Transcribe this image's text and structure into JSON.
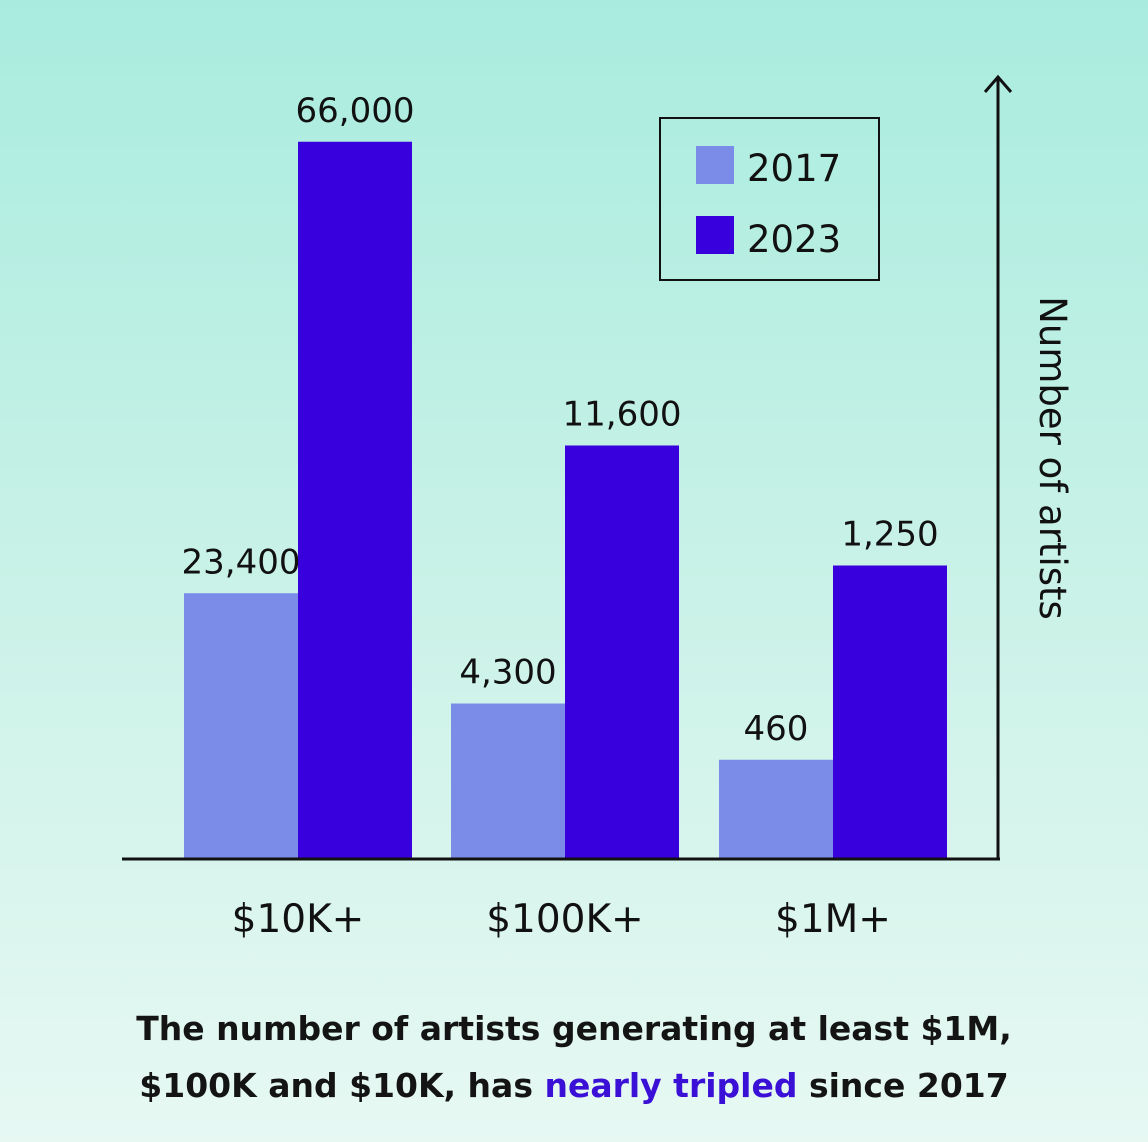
{
  "chart_data": {
    "type": "bar",
    "categories": [
      "$10K+",
      "$100K+",
      "$1M+"
    ],
    "series": [
      {
        "name": "2017",
        "values": [
          23400,
          4300,
          460
        ],
        "labels": [
          "23,400",
          "4,300",
          "460"
        ],
        "color": "#7a8ce8"
      },
      {
        "name": "2023",
        "values": [
          66000,
          11600,
          1250
        ],
        "labels": [
          "66,000",
          "11,600",
          "1,250"
        ],
        "color": "#3700dd"
      }
    ],
    "ylabel": "Number of artists",
    "xlabel": "",
    "y_scale": "non-linear (bars not drawn to a linear scale)",
    "bar_fraction": [
      [
        0.353,
        0.955
      ],
      [
        0.206,
        0.55
      ],
      [
        0.131,
        0.39
      ]
    ],
    "legend": "top-right",
    "grid": false
  },
  "caption": {
    "line1": "The number of artists generating at least $1M,",
    "line2_before": "$100K and $10K, has ",
    "line2_highlight": "nearly tripled",
    "line2_after": " since 2017",
    "highlight_color": "#3a10d6"
  }
}
